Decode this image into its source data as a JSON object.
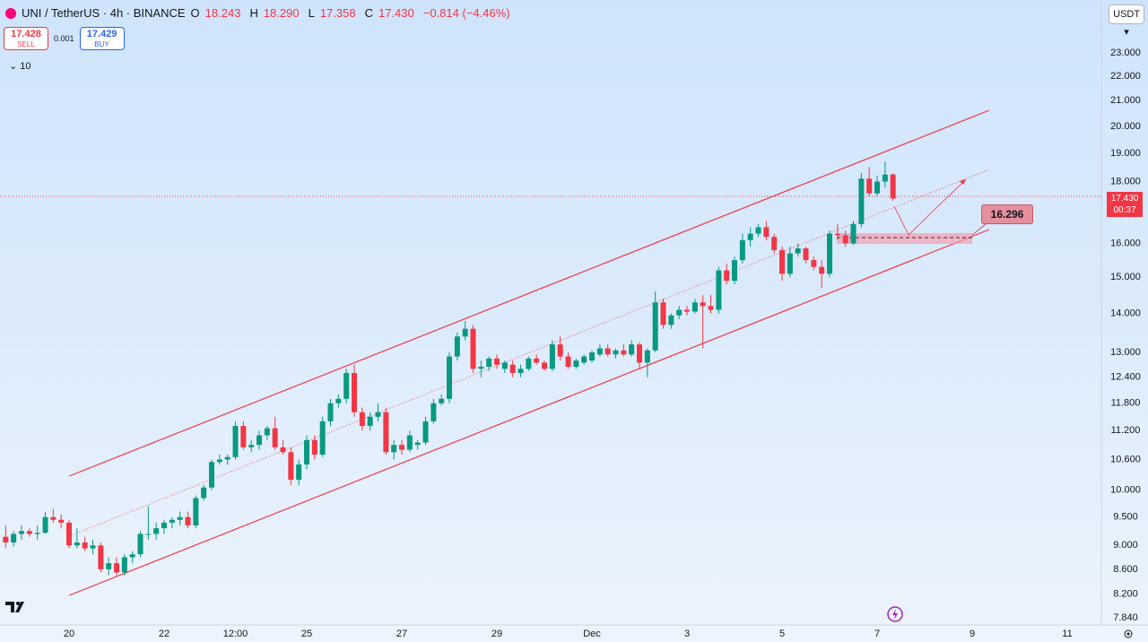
{
  "header": {
    "symbol": "UNI / TetherUS · 4h · BINANCE",
    "open_label": "O",
    "open": "18.243",
    "high_label": "H",
    "high": "18.290",
    "low_label": "L",
    "low": "17.358",
    "close_label": "C",
    "close": "17.430",
    "change": "−0.814 (−4.46%)",
    "indicators": 10,
    "currency": "USDT"
  },
  "trade": {
    "sell_price": 17.428,
    "sell_label": "SELL",
    "spread": 0.001,
    "buy_price": 17.429,
    "buy_label": "BUY"
  },
  "chart_data": {
    "type": "candlestick",
    "log_scale": true,
    "grid": false,
    "up_color": "#089981",
    "down_color": "#f23645",
    "target": 16.296,
    "current_price": "17.430",
    "countdown": "00:37",
    "xlim": [
      18.547,
      41.66
    ],
    "xticks": [
      20,
      22,
      {
        "value": 23.5,
        "label": "12:00"
      },
      25,
      27,
      29,
      {
        "value": 31,
        "label": "Dec"
      },
      {
        "value": 33,
        "label": "3"
      },
      {
        "value": 35,
        "label": "5"
      },
      {
        "value": 37,
        "label": "7"
      },
      {
        "value": 39,
        "label": "9"
      },
      {
        "value": 41,
        "label": "11"
      }
    ],
    "ylim": [
      7.735,
      25.44
    ],
    "yticks": [
      {
        "value": 23,
        "label": "23.000"
      },
      {
        "value": 22,
        "label": "22.000"
      },
      {
        "value": 21,
        "label": "21.000"
      },
      {
        "value": 20,
        "label": "20.000"
      },
      {
        "value": 19,
        "label": "19.000"
      },
      {
        "value": 18,
        "label": "18.000"
      },
      {
        "value": 16,
        "label": "16.000"
      },
      {
        "value": 15,
        "label": "15.000"
      },
      {
        "value": 14,
        "label": "14.000"
      },
      {
        "value": 13,
        "label": "13.000"
      },
      {
        "value": 12.4,
        "label": "12.400"
      },
      {
        "value": 11.8,
        "label": "11.800"
      },
      {
        "value": 11.2,
        "label": "11.200"
      },
      {
        "value": 10.6,
        "label": "10.600"
      },
      {
        "value": 10,
        "label": "10.000"
      },
      {
        "value": 9.5,
        "label": "9.500"
      },
      {
        "value": 9,
        "label": "9.000"
      },
      {
        "value": 8.6,
        "label": "8.600"
      },
      {
        "value": 8.2,
        "label": "8.200"
      },
      {
        "value": 7.84,
        "label": "7.840"
      }
    ],
    "x": [
      18.667,
      18.833,
      19,
      19.167,
      19.333,
      19.5,
      19.667,
      19.833,
      20,
      20.167,
      20.333,
      20.5,
      20.667,
      20.833,
      21,
      21.167,
      21.333,
      21.5,
      21.667,
      21.833,
      22,
      22.167,
      22.333,
      22.5,
      22.667,
      22.833,
      23,
      23.167,
      23.333,
      23.5,
      23.667,
      23.833,
      24,
      24.167,
      24.333,
      24.5,
      24.667,
      24.833,
      25,
      25.167,
      25.333,
      25.5,
      25.667,
      25.833,
      26,
      26.167,
      26.333,
      26.5,
      26.667,
      26.833,
      27,
      27.167,
      27.333,
      27.5,
      27.667,
      27.833,
      28,
      28.167,
      28.333,
      28.5,
      28.667,
      28.833,
      29,
      29.167,
      29.333,
      29.5,
      29.667,
      29.833,
      30,
      30.167,
      30.333,
      30.5,
      30.667,
      30.833,
      31,
      31.167,
      31.333,
      31.5,
      31.667,
      31.833,
      32,
      32.167,
      32.333,
      32.5,
      32.667,
      32.833,
      33,
      33.167,
      33.333,
      33.5,
      33.667,
      33.833,
      34,
      34.167,
      34.333,
      34.5,
      34.667,
      34.833,
      35,
      35.167,
      35.333,
      35.5,
      35.667,
      35.833,
      36,
      36.167,
      36.333,
      36.5,
      36.667,
      36.833,
      37,
      37.167,
      37.333
    ],
    "open": [
      9.15,
      9.05,
      9.2,
      9.25,
      9.2,
      9.22,
      9.5,
      9.45,
      9.4,
      9.0,
      9.05,
      8.95,
      9.0,
      8.6,
      8.7,
      8.55,
      8.8,
      8.85,
      9.2,
      9.2,
      9.3,
      9.4,
      9.45,
      9.5,
      9.35,
      9.85,
      10.05,
      10.55,
      10.6,
      10.65,
      11.3,
      10.85,
      10.9,
      11.1,
      11.25,
      10.85,
      10.75,
      10.2,
      10.5,
      11.0,
      10.7,
      11.4,
      11.8,
      11.9,
      12.5,
      11.6,
      11.3,
      11.5,
      11.6,
      10.75,
      10.9,
      10.8,
      10.9,
      10.95,
      11.4,
      11.8,
      11.9,
      12.9,
      13.4,
      13.6,
      12.6,
      12.65,
      12.85,
      12.6,
      12.7,
      12.5,
      12.6,
      12.85,
      12.75,
      12.6,
      13.2,
      12.9,
      12.65,
      12.75,
      12.8,
      12.95,
      13.1,
      12.95,
      13.05,
      12.95,
      13.2,
      12.75,
      13.05,
      14.3,
      13.7,
      13.95,
      14.1,
      14.05,
      14.3,
      14.2,
      14.1,
      15.2,
      14.9,
      15.5,
      16.1,
      16.3,
      16.5,
      16.2,
      15.8,
      15.1,
      15.7,
      15.85,
      15.5,
      15.3,
      15.1,
      16.3,
      16.25,
      16.0,
      16.6,
      18.1,
      17.6,
      18.0,
      18.243
    ],
    "high": [
      9.35,
      9.25,
      9.35,
      9.3,
      9.35,
      9.6,
      9.65,
      9.55,
      9.45,
      9.3,
      9.15,
      9.1,
      9.05,
      8.8,
      8.8,
      8.85,
      8.9,
      9.25,
      9.7,
      9.4,
      9.45,
      9.5,
      9.6,
      9.6,
      9.9,
      10.1,
      10.6,
      10.7,
      10.7,
      11.4,
      11.4,
      11.0,
      11.2,
      11.3,
      11.5,
      11.0,
      10.85,
      10.6,
      11.1,
      11.1,
      11.5,
      11.9,
      12.0,
      12.6,
      12.7,
      11.7,
      11.6,
      11.8,
      11.7,
      11.0,
      11.0,
      11.2,
      11.0,
      11.5,
      11.9,
      12.0,
      13.0,
      13.5,
      13.8,
      13.7,
      12.8,
      12.9,
      12.95,
      12.8,
      12.8,
      12.7,
      12.9,
      12.95,
      12.8,
      13.3,
      13.4,
      13.0,
      12.85,
      12.95,
      13.05,
      13.2,
      13.2,
      13.1,
      13.2,
      13.3,
      13.25,
      13.1,
      14.6,
      14.4,
      14.0,
      14.2,
      14.2,
      14.4,
      14.5,
      14.5,
      15.3,
      15.4,
      15.6,
      16.3,
      16.5,
      16.6,
      16.7,
      16.3,
      15.9,
      15.9,
      16.0,
      15.9,
      15.6,
      15.5,
      16.4,
      16.6,
      16.4,
      16.7,
      18.3,
      18.5,
      18.2,
      18.7,
      18.29
    ],
    "low": [
      8.95,
      8.98,
      9.1,
      9.15,
      9.1,
      9.2,
      9.4,
      9.3,
      8.95,
      8.95,
      8.9,
      8.85,
      8.55,
      8.5,
      8.5,
      8.5,
      8.7,
      8.8,
      9.1,
      9.1,
      9.2,
      9.3,
      9.35,
      9.3,
      9.3,
      9.8,
      10.0,
      10.5,
      10.5,
      10.6,
      10.8,
      10.75,
      10.8,
      11.0,
      10.8,
      10.7,
      10.1,
      10.1,
      10.4,
      10.6,
      10.65,
      11.3,
      11.7,
      11.8,
      11.5,
      11.2,
      11.2,
      11.4,
      10.7,
      10.6,
      10.7,
      10.75,
      10.8,
      10.9,
      11.35,
      11.75,
      11.8,
      12.8,
      13.3,
      12.5,
      12.4,
      12.55,
      12.6,
      12.5,
      12.4,
      12.4,
      12.55,
      12.7,
      12.55,
      12.55,
      12.8,
      12.6,
      12.6,
      12.7,
      12.75,
      12.9,
      12.9,
      12.85,
      12.9,
      12.9,
      12.6,
      12.4,
      13.0,
      13.6,
      13.6,
      13.85,
      13.95,
      14.0,
      13.1,
      14.0,
      14.0,
      14.8,
      14.8,
      15.4,
      15.9,
      16.2,
      16.1,
      15.7,
      14.9,
      15.0,
      15.6,
      15.4,
      15.2,
      14.7,
      15.0,
      16.1,
      15.9,
      15.95,
      16.5,
      17.5,
      17.5,
      17.8,
      17.358
    ],
    "close": [
      9.05,
      9.2,
      9.25,
      9.2,
      9.22,
      9.5,
      9.45,
      9.4,
      9.0,
      9.05,
      8.95,
      9.0,
      8.6,
      8.7,
      8.55,
      8.8,
      8.85,
      9.2,
      9.2,
      9.3,
      9.4,
      9.45,
      9.5,
      9.35,
      9.85,
      10.05,
      10.55,
      10.6,
      10.65,
      11.3,
      10.85,
      10.9,
      11.1,
      11.25,
      10.85,
      10.75,
      10.2,
      10.5,
      11.0,
      10.7,
      11.4,
      11.8,
      11.9,
      12.5,
      11.6,
      11.3,
      11.5,
      11.6,
      10.75,
      10.9,
      10.8,
      11.1,
      10.95,
      11.4,
      11.8,
      11.9,
      12.9,
      13.4,
      13.6,
      12.6,
      12.65,
      12.85,
      12.7,
      12.75,
      12.5,
      12.6,
      12.85,
      12.75,
      12.6,
      13.2,
      12.9,
      12.65,
      12.8,
      12.9,
      13.0,
      13.1,
      12.95,
      13.05,
      12.95,
      13.2,
      12.75,
      13.05,
      14.3,
      13.7,
      13.95,
      14.1,
      14.05,
      14.3,
      14.2,
      14.1,
      15.2,
      14.9,
      15.5,
      16.1,
      16.3,
      16.5,
      16.2,
      15.8,
      15.1,
      15.7,
      15.85,
      15.5,
      15.3,
      15.1,
      16.3,
      16.25,
      16.0,
      16.6,
      18.1,
      17.6,
      18.0,
      18.243,
      17.43
    ]
  }
}
